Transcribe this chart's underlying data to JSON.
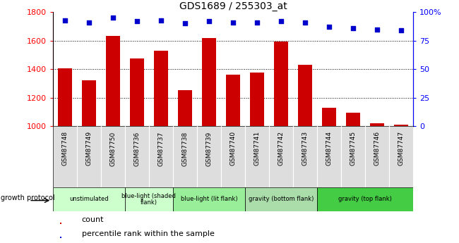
{
  "title": "GDS1689 / 255303_at",
  "samples": [
    "GSM87748",
    "GSM87749",
    "GSM87750",
    "GSM87736",
    "GSM87737",
    "GSM87738",
    "GSM87739",
    "GSM87740",
    "GSM87741",
    "GSM87742",
    "GSM87743",
    "GSM87744",
    "GSM87745",
    "GSM87746",
    "GSM87747"
  ],
  "counts": [
    1407,
    1325,
    1635,
    1475,
    1530,
    1255,
    1620,
    1360,
    1375,
    1595,
    1430,
    1130,
    1095,
    1020,
    1010
  ],
  "percentiles": [
    93,
    91,
    95,
    92,
    93,
    90,
    92,
    91,
    91,
    92,
    91,
    87,
    86,
    85,
    84
  ],
  "ylim_left": [
    1000,
    1800
  ],
  "ylim_right": [
    0,
    100
  ],
  "yticks_left": [
    1000,
    1200,
    1400,
    1600,
    1800
  ],
  "yticks_right": [
    0,
    25,
    50,
    75,
    100
  ],
  "ytick_labels_right": [
    "0",
    "25",
    "50",
    "75",
    "100%"
  ],
  "bar_color": "#cc0000",
  "dot_color": "#0000cc",
  "group_configs": [
    {
      "label": "unstimulated",
      "start": 0,
      "end": 3,
      "color": "#ccffcc"
    },
    {
      "label": "blue-light (shaded\nflank)",
      "start": 3,
      "end": 5,
      "color": "#ccffcc"
    },
    {
      "label": "blue-light (lit flank)",
      "start": 5,
      "end": 8,
      "color": "#99ee99"
    },
    {
      "label": "gravity (bottom flank)",
      "start": 8,
      "end": 11,
      "color": "#aaddaa"
    },
    {
      "label": "gravity (top flank)",
      "start": 11,
      "end": 15,
      "color": "#44cc44"
    }
  ],
  "col_bg_colors": [
    "#dddddd",
    "#dddddd",
    "#dddddd",
    "#dddddd",
    "#dddddd",
    "#dddddd",
    "#dddddd",
    "#dddddd",
    "#dddddd",
    "#dddddd",
    "#dddddd",
    "#dddddd",
    "#dddddd",
    "#dddddd",
    "#dddddd"
  ],
  "legend_label_bar": "count",
  "legend_label_dot": "percentile rank within the sample",
  "growth_protocol_label": "growth protocol"
}
